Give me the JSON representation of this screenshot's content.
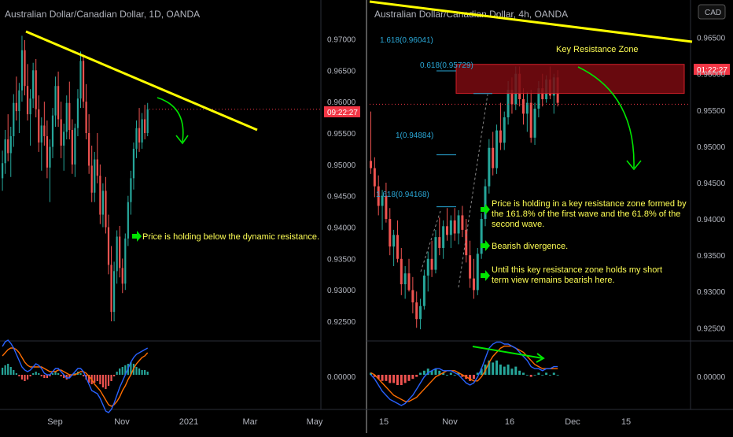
{
  "colors": {
    "up": "#26a69a",
    "down": "#ef5350",
    "trendline": "#ffff00",
    "arrow": "#00e600",
    "annotation_text": "#ffff55",
    "fib_text": "#2aa7d6",
    "resistance_fill": "#7a0b10",
    "resistance_border": "#d4202a",
    "macd_line": "#2962ff",
    "signal_line": "#ff6d00",
    "price_tag": "#f23645",
    "axis_text": "#b2b5be",
    "grid": "#1b1b1b"
  },
  "chart_data": [
    {
      "type": "candlestick",
      "title": "Australian Dollar/Canadian Dollar, 1D, OANDA",
      "x_ticks": [
        "Sep",
        "Nov",
        "2021",
        "Mar",
        "May"
      ],
      "y_ticks": [
        "0.97000",
        "0.96500",
        "0.96000",
        "0.95500",
        "0.95000",
        "0.94500",
        "0.94000",
        "0.93500",
        "0.93000",
        "0.92500"
      ],
      "ylim": [
        0.922,
        0.9752
      ],
      "price_tag": "09:22:27",
      "price_tag_value": 0.9588,
      "trendline": {
        "from": [
          "Jul 2020",
          0.9705
        ],
        "to": [
          "Jan 2021",
          0.9545
        ]
      },
      "candles": [
        [
          0.9478,
          0.9522,
          0.9458,
          0.9502
        ],
        [
          0.9502,
          0.9555,
          0.9485,
          0.954
        ],
        [
          0.954,
          0.958,
          0.9505,
          0.9518
        ],
        [
          0.9518,
          0.956,
          0.948,
          0.9545
        ],
        [
          0.9545,
          0.9612,
          0.9528,
          0.9598
        ],
        [
          0.9598,
          0.964,
          0.957,
          0.9585
        ],
        [
          0.9585,
          0.963,
          0.955,
          0.9618
        ],
        [
          0.9618,
          0.9705,
          0.96,
          0.9682
        ],
        [
          0.9682,
          0.9698,
          0.961,
          0.9625
        ],
        [
          0.9625,
          0.966,
          0.957,
          0.958
        ],
        [
          0.958,
          0.962,
          0.953,
          0.9605
        ],
        [
          0.9605,
          0.9662,
          0.959,
          0.965
        ],
        [
          0.965,
          0.9668,
          0.9575,
          0.9588
        ],
        [
          0.9588,
          0.961,
          0.952,
          0.9535
        ],
        [
          0.9535,
          0.9575,
          0.949,
          0.9562
        ],
        [
          0.9562,
          0.96,
          0.953,
          0.9545
        ],
        [
          0.9545,
          0.957,
          0.9478,
          0.9495
        ],
        [
          0.9495,
          0.954,
          0.944,
          0.9528
        ],
        [
          0.9528,
          0.959,
          0.951,
          0.9578
        ],
        [
          0.9578,
          0.964,
          0.956,
          0.9625
        ],
        [
          0.9625,
          0.9648,
          0.956,
          0.9572
        ],
        [
          0.9572,
          0.96,
          0.951,
          0.953
        ],
        [
          0.953,
          0.9565,
          0.949,
          0.9552
        ],
        [
          0.9552,
          0.961,
          0.954,
          0.9598
        ],
        [
          0.9598,
          0.9632,
          0.954,
          0.9555
        ],
        [
          0.9555,
          0.9572,
          0.9485,
          0.95
        ],
        [
          0.95,
          0.9565,
          0.948,
          0.9558
        ],
        [
          0.9558,
          0.962,
          0.9545,
          0.9605
        ],
        [
          0.9605,
          0.968,
          0.959,
          0.9665
        ],
        [
          0.9665,
          0.9675,
          0.959,
          0.96
        ],
        [
          0.96,
          0.9628,
          0.954,
          0.955
        ],
        [
          0.955,
          0.958,
          0.9485,
          0.9498
        ],
        [
          0.9498,
          0.953,
          0.944,
          0.9455
        ],
        [
          0.9455,
          0.952,
          0.944,
          0.9508
        ],
        [
          0.9508,
          0.955,
          0.947,
          0.9482
        ],
        [
          0.9482,
          0.95,
          0.9405,
          0.942
        ],
        [
          0.942,
          0.947,
          0.94,
          0.9458
        ],
        [
          0.9458,
          0.948,
          0.939,
          0.94
        ],
        [
          0.94,
          0.942,
          0.9325,
          0.934
        ],
        [
          0.934,
          0.937,
          0.925,
          0.9265
        ],
        [
          0.9265,
          0.9345,
          0.925,
          0.933
        ],
        [
          0.933,
          0.9395,
          0.931,
          0.9385
        ],
        [
          0.9385,
          0.9402,
          0.932,
          0.9335
        ],
        [
          0.9335,
          0.935,
          0.9295,
          0.931
        ],
        [
          0.931,
          0.939,
          0.93,
          0.9382
        ],
        [
          0.9382,
          0.945,
          0.937,
          0.944
        ],
        [
          0.944,
          0.949,
          0.942,
          0.9478
        ],
        [
          0.9478,
          0.9535,
          0.946,
          0.9525
        ],
        [
          0.9525,
          0.957,
          0.951,
          0.9558
        ],
        [
          0.9558,
          0.959,
          0.952,
          0.9535
        ],
        [
          0.9535,
          0.9582,
          0.9525,
          0.9572
        ],
        [
          0.9572,
          0.9595,
          0.954,
          0.955
        ],
        [
          0.955,
          0.9598,
          0.9545,
          0.9588
        ]
      ],
      "macd": {
        "zero_label": "0.00000",
        "histogram": [
          0.00045,
          0.0006,
          0.0007,
          0.0005,
          0.0003,
          0.0001,
          -0.0001,
          -0.0003,
          -0.0004,
          -0.0003,
          -0.0001,
          0.0001,
          0.0002,
          0.0001,
          -0.0001,
          -0.0002,
          -0.0002,
          -0.0001,
          0.0001,
          0.0002,
          0.0001,
          -0.0001,
          -0.0002,
          -0.0003,
          -0.0002,
          0,
          0.0001,
          0.0002,
          0.0001,
          -0.0001,
          -0.0003,
          -0.0005,
          -0.0006,
          -0.0005,
          -0.0004,
          -0.0006,
          -0.0008,
          -0.0009,
          -0.0007,
          -0.0004,
          -0.0001,
          0.0002,
          0.0004,
          0.0005,
          0.0006,
          0.0007,
          0.0008,
          0.0007,
          0.0005,
          0.0004,
          0.0003,
          0.0003,
          0.0002
        ],
        "macd_line": [
          0.0018,
          0.0021,
          0.0022,
          0.002,
          0.0017,
          0.0013,
          0.0009,
          0.0005,
          0.0003,
          0.0002,
          0.0003,
          0.0005,
          0.0007,
          0.0006,
          0.0004,
          0.0001,
          0,
          0,
          0.0002,
          0.0004,
          0.0004,
          0.0002,
          0,
          -0.0002,
          -0.0002,
          0,
          0.0002,
          0.0004,
          0.0004,
          0.0002,
          -0.0002,
          -0.0006,
          -0.001,
          -0.0011,
          -0.0012,
          -0.0015,
          -0.0019,
          -0.0023,
          -0.0024,
          -0.0022,
          -0.0018,
          -0.0013,
          -0.0008,
          -0.0004,
          0,
          0.0004,
          0.0008,
          0.0011,
          0.0013,
          0.0014,
          0.0015,
          0.0016,
          0.0017
        ],
        "signal_line": [
          0.0012,
          0.0014,
          0.0016,
          0.0017,
          0.0017,
          0.0016,
          0.0014,
          0.0011,
          0.0008,
          0.0006,
          0.0005,
          0.0005,
          0.0005,
          0.0005,
          0.0005,
          0.0004,
          0.0003,
          0.0002,
          0.0002,
          0.0002,
          0.0003,
          0.0003,
          0.0002,
          0.0001,
          0,
          0,
          0,
          0.0001,
          0.0002,
          0.0002,
          0.0001,
          -0.0001,
          -0.0003,
          -0.0006,
          -0.0008,
          -0.001,
          -0.0013,
          -0.0016,
          -0.0019,
          -0.002,
          -0.0019,
          -0.0017,
          -0.0014,
          -0.001,
          -0.0007,
          -0.0003,
          0,
          0.0004,
          0.0007,
          0.0009,
          0.0011,
          0.0012,
          0.0014
        ]
      },
      "annotation": "Price is holding below the dynamic resistance."
    },
    {
      "type": "candlestick",
      "title": "Australian Dollar/Canadian Dollar, 4h, OANDA",
      "x_ticks": [
        "15",
        "Nov",
        "16",
        "Dec",
        "15"
      ],
      "y_ticks": [
        "0.96500",
        "0.96000",
        "0.95500",
        "0.95000",
        "0.94500",
        "0.94000",
        "0.93500",
        "0.93000",
        "0.92500"
      ],
      "ylim": [
        0.9233,
        0.9693
      ],
      "currency_badge": "CAD",
      "price_tag": "01:22:27",
      "price_tag_value": 0.9558,
      "resistance_zone": {
        "label": "Key Resistance Zone",
        "upper": 0.9613,
        "lower": 0.9573
      },
      "fib_levels": [
        {
          "label": "1.618(0.96041)",
          "value": 0.96041
        },
        {
          "label": "0.618(0.95729)",
          "value": 0.95729
        },
        {
          "label": "1(0.94884)",
          "value": 0.94884
        },
        {
          "label": "1.618(0.94168)",
          "value": 0.94168
        }
      ],
      "trendline": {
        "from": [
          "Oct",
          0.9713
        ],
        "to": [
          "Dec",
          0.96
        ]
      },
      "candles": [
        [
          0.948,
          0.9548,
          0.9462,
          0.947
        ],
        [
          0.947,
          0.9485,
          0.943,
          0.9445
        ],
        [
          0.9445,
          0.946,
          0.9405,
          0.9418
        ],
        [
          0.9418,
          0.944,
          0.9385,
          0.9432
        ],
        [
          0.9432,
          0.945,
          0.9395,
          0.94
        ],
        [
          0.94,
          0.9415,
          0.935,
          0.9362
        ],
        [
          0.9362,
          0.9385,
          0.9335,
          0.9378
        ],
        [
          0.9378,
          0.9398,
          0.934,
          0.9345
        ],
        [
          0.9345,
          0.936,
          0.9295,
          0.931
        ],
        [
          0.931,
          0.9335,
          0.929,
          0.9325
        ],
        [
          0.9325,
          0.9345,
          0.93,
          0.9302
        ],
        [
          0.9302,
          0.932,
          0.927,
          0.9285
        ],
        [
          0.9285,
          0.93,
          0.925,
          0.9262
        ],
        [
          0.9262,
          0.929,
          0.9248,
          0.928
        ],
        [
          0.928,
          0.933,
          0.9275,
          0.9322
        ],
        [
          0.9322,
          0.9355,
          0.93,
          0.9345
        ],
        [
          0.9345,
          0.937,
          0.932,
          0.933
        ],
        [
          0.933,
          0.9385,
          0.9325,
          0.9375
        ],
        [
          0.9375,
          0.9402,
          0.935,
          0.936
        ],
        [
          0.936,
          0.9398,
          0.9345,
          0.939
        ],
        [
          0.939,
          0.9415,
          0.937,
          0.9378
        ],
        [
          0.9378,
          0.9405,
          0.936,
          0.9398
        ],
        [
          0.9398,
          0.9415,
          0.937,
          0.938
        ],
        [
          0.938,
          0.9412,
          0.9365,
          0.9405
        ],
        [
          0.9405,
          0.9418,
          0.9375,
          0.9385
        ],
        [
          0.9385,
          0.94,
          0.934,
          0.935
        ],
        [
          0.935,
          0.937,
          0.9305,
          0.9318
        ],
        [
          0.9318,
          0.9345,
          0.929,
          0.9302
        ],
        [
          0.9302,
          0.936,
          0.9295,
          0.9352
        ],
        [
          0.9352,
          0.9408,
          0.9345,
          0.94
        ],
        [
          0.94,
          0.9455,
          0.939,
          0.9445
        ],
        [
          0.9445,
          0.951,
          0.9435,
          0.9498
        ],
        [
          0.9498,
          0.952,
          0.946,
          0.947
        ],
        [
          0.947,
          0.953,
          0.9462,
          0.9522
        ],
        [
          0.9522,
          0.956,
          0.9495,
          0.9505
        ],
        [
          0.9505,
          0.9548,
          0.9495,
          0.954
        ],
        [
          0.954,
          0.959,
          0.953,
          0.9578
        ],
        [
          0.9578,
          0.9595,
          0.9545,
          0.9558
        ],
        [
          0.9558,
          0.961,
          0.955,
          0.96
        ],
        [
          0.96,
          0.961,
          0.9555,
          0.9565
        ],
        [
          0.9565,
          0.958,
          0.953,
          0.9545
        ],
        [
          0.9545,
          0.9575,
          0.952,
          0.956
        ],
        [
          0.956,
          0.9578,
          0.9505,
          0.9512
        ],
        [
          0.9512,
          0.956,
          0.9502,
          0.9552
        ],
        [
          0.9552,
          0.959,
          0.954,
          0.958
        ],
        [
          0.958,
          0.96,
          0.9555,
          0.9565
        ],
        [
          0.9565,
          0.9598,
          0.956,
          0.9592
        ],
        [
          0.9592,
          0.961,
          0.9565,
          0.957
        ],
        [
          0.957,
          0.96,
          0.9545,
          0.9595
        ],
        [
          0.9595,
          0.9605,
          0.9555,
          0.956
        ]
      ],
      "macd": {
        "zero_label": "0.00000",
        "histogram": [
          0.0001,
          -0.0001,
          -0.0002,
          -0.0003,
          -0.0003,
          -0.0004,
          -0.0004,
          -0.0005,
          -0.0005,
          -0.0004,
          -0.0003,
          -0.0002,
          -0.0001,
          0.0001,
          0.0002,
          0.0003,
          0.0002,
          0.0003,
          0.0002,
          0.0001,
          0,
          0.0001,
          0,
          0.0001,
          -0.0001,
          -0.0002,
          -0.0003,
          -0.0002,
          0.0001,
          0.0003,
          0.0005,
          0.0007,
          0.0006,
          0.0007,
          0.0005,
          0.0004,
          0.0005,
          0.0003,
          0.0004,
          0.0002,
          0.0001,
          0,
          -0.0001,
          0,
          0.0001,
          0,
          0.0001,
          0,
          0.0001,
          0
        ],
        "macd_line": [
          0,
          -0.0002,
          -0.0005,
          -0.0008,
          -0.001,
          -0.0012,
          -0.0013,
          -0.0014,
          -0.0015,
          -0.0014,
          -0.0012,
          -0.001,
          -0.0007,
          -0.0004,
          -0.0001,
          0.0001,
          0.0002,
          0.0003,
          0.0003,
          0.0002,
          0.0002,
          0.0002,
          0.0001,
          0,
          -0.0002,
          -0.0004,
          -0.0005,
          -0.0004,
          -0.0001,
          0.0003,
          0.0008,
          0.0013,
          0.0015,
          0.0016,
          0.0016,
          0.0015,
          0.0015,
          0.0014,
          0.0013,
          0.0011,
          0.0009,
          0.0007,
          0.0004,
          0.0003,
          0.0003,
          0.0002,
          0.0003,
          0.0003,
          0.0004,
          0.0004
        ],
        "signal_line": [
          0.0001,
          0,
          -0.0002,
          -0.0004,
          -0.0006,
          -0.0008,
          -0.001,
          -0.0011,
          -0.0012,
          -0.0013,
          -0.0013,
          -0.0012,
          -0.0011,
          -0.0009,
          -0.0007,
          -0.0005,
          -0.0003,
          -0.0001,
          0,
          0.0001,
          0.0002,
          0.0002,
          0.0002,
          0.0001,
          0,
          -0.0001,
          -0.0002,
          -0.0003,
          -0.0003,
          -0.0001,
          0.0002,
          0.0006,
          0.0009,
          0.0011,
          0.0013,
          0.0014,
          0.0014,
          0.0014,
          0.0013,
          0.0012,
          0.0011,
          0.0009,
          0.0007,
          0.0005,
          0.0004,
          0.0003,
          0.0003,
          0.0003,
          0.0003,
          0.0003
        ]
      },
      "annotations": [
        "Price is holding in a key resistance zone formed by",
        "the 161.8% of the first wave and the 61.8% of the",
        "second wave.",
        "Bearish divergence.",
        "Until this key resistance zone holds my short",
        "term view remains bearish here."
      ]
    }
  ]
}
